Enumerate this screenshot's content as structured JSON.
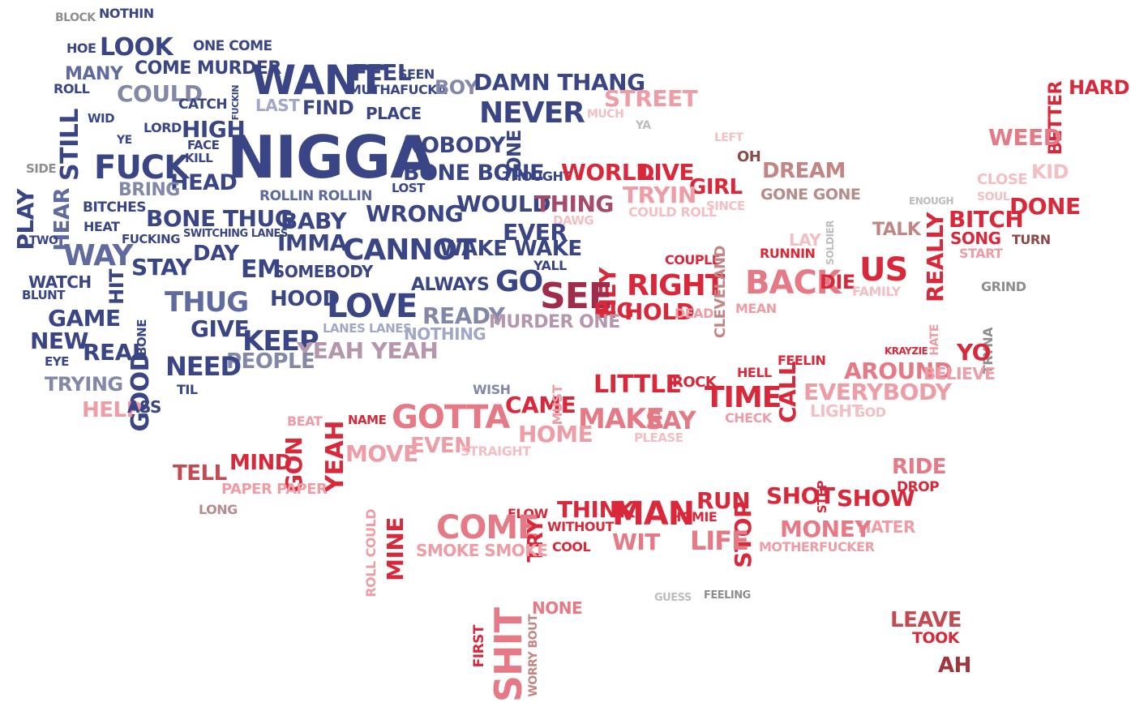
{
  "palette": {
    "navy": "#3a4585",
    "mid_navy": "#5f6a9e",
    "slate": "#8388a8",
    "lavender": "#a3a7c7",
    "mauve": "#b497ad",
    "plum": "#a64a6c",
    "wine": "#9e2c4a",
    "crimson": "#d9283a",
    "red": "#e24452",
    "rose": "#e57a86",
    "pink": "#ee9ca5",
    "blush": "#f3bfc4",
    "brick": "#c44a52",
    "dusty": "#c38484",
    "taupe": "#b78b8b",
    "gray": "#8e8e8e",
    "light_gray": "#bdbdbd",
    "dark_red": "#a3343c",
    "brown": "#8a4a48"
  },
  "words": [
    {
      "text": "BLOCK",
      "color": "#8e8e8e"
    },
    {
      "text": "NOTHIN",
      "color": "#3a4585"
    },
    {
      "text": "HOE",
      "color": "#3a4585"
    },
    {
      "text": "LOOK",
      "color": "#3a4585"
    },
    {
      "text": "ONE COME",
      "color": "#3a4585"
    },
    {
      "text": "MANY",
      "color": "#5f6a9e"
    },
    {
      "text": "COME MURDER",
      "color": "#3a4585"
    },
    {
      "text": "WANT",
      "color": "#3a4585"
    },
    {
      "text": "FEEL",
      "color": "#3a4585"
    },
    {
      "text": "SEEN",
      "color": "#3a4585"
    },
    {
      "text": "ROLL",
      "color": "#3a4585"
    },
    {
      "text": "COULD",
      "color": "#8388a8"
    },
    {
      "text": "FUCKIN",
      "color": "#3a4585"
    },
    {
      "text": "MUTHAFUCKA",
      "color": "#3a4585"
    },
    {
      "text": "BOY",
      "color": "#8388a8"
    },
    {
      "text": "DAMN THANG",
      "color": "#3a4585"
    },
    {
      "text": "HARD",
      "color": "#d9283a"
    },
    {
      "text": "LAST",
      "color": "#a3a7c7"
    },
    {
      "text": "FIND",
      "color": "#3a4585"
    },
    {
      "text": "STREET",
      "color": "#ee9ca5"
    },
    {
      "text": "CATCH",
      "color": "#3a4585"
    },
    {
      "text": "PLACE",
      "color": "#3a4585"
    },
    {
      "text": "NEVER",
      "color": "#3a4585"
    },
    {
      "text": "MUCH",
      "color": "#f3bfc4"
    },
    {
      "text": "BETTER",
      "color": "#d9283a"
    },
    {
      "text": "STILL",
      "color": "#3a4585"
    },
    {
      "text": "WID",
      "color": "#3a4585"
    },
    {
      "text": "LORD",
      "color": "#3a4585"
    },
    {
      "text": "HIGH",
      "color": "#3a4585"
    },
    {
      "text": "YA",
      "color": "#bdbdbd"
    },
    {
      "text": "YE",
      "color": "#3a4585"
    },
    {
      "text": "FACE",
      "color": "#3a4585"
    },
    {
      "text": "NIGGA",
      "color": "#3a4585"
    },
    {
      "text": "NOBODY",
      "color": "#3a4585"
    },
    {
      "text": "ONE",
      "color": "#3a4585"
    },
    {
      "text": "LEFT",
      "color": "#f3bfc4"
    },
    {
      "text": "WEED",
      "color": "#e57a86"
    },
    {
      "text": "KILL",
      "color": "#3a4585"
    },
    {
      "text": "OH",
      "color": "#8a4a48"
    },
    {
      "text": "FUCK",
      "color": "#3a4585"
    },
    {
      "text": "SIDE",
      "color": "#8e8e8e"
    },
    {
      "text": "HEAD",
      "color": "#3a4585"
    },
    {
      "text": "BONE BONE",
      "color": "#3a4585"
    },
    {
      "text": "THOUGHT",
      "color": "#3a4585"
    },
    {
      "text": "WORLD",
      "color": "#d9283a"
    },
    {
      "text": "LIVE",
      "color": "#d9283a"
    },
    {
      "text": "DREAM",
      "color": "#c38484"
    },
    {
      "text": "CLOSE",
      "color": "#f3bfc4"
    },
    {
      "text": "KID",
      "color": "#f3bfc4"
    },
    {
      "text": "BRING",
      "color": "#8388a8"
    },
    {
      "text": "LOST",
      "color": "#3a4585"
    },
    {
      "text": "GIRL",
      "color": "#d9283a"
    },
    {
      "text": "ROLLIN ROLLIN",
      "color": "#5f6a9e"
    },
    {
      "text": "TRYIN",
      "color": "#ee9ca5"
    },
    {
      "text": "GONE GONE",
      "color": "#b78b8b"
    },
    {
      "text": "SOUL",
      "color": "#f3bfc4"
    },
    {
      "text": "PLAY",
      "color": "#3a4585"
    },
    {
      "text": "HEAR",
      "color": "#5f6a9e"
    },
    {
      "text": "WOULD",
      "color": "#3a4585"
    },
    {
      "text": "THING",
      "color": "#a64a6c"
    },
    {
      "text": "ENOUGH",
      "color": "#bdbdbd"
    },
    {
      "text": "DONE",
      "color": "#d9283a"
    },
    {
      "text": "BITCHES",
      "color": "#3a4585"
    },
    {
      "text": "WRONG",
      "color": "#3a4585"
    },
    {
      "text": "SINCE",
      "color": "#f3bfc4"
    },
    {
      "text": "COULD ROLL",
      "color": "#f3bfc4"
    },
    {
      "text": "BONE THUG",
      "color": "#3a4585"
    },
    {
      "text": "BABY",
      "color": "#3a4585"
    },
    {
      "text": "HEAT",
      "color": "#3a4585"
    },
    {
      "text": "DAWG",
      "color": "#f3bfc4"
    },
    {
      "text": "BITCH",
      "color": "#d9283a"
    },
    {
      "text": "TALK",
      "color": "#c38484"
    },
    {
      "text": "TWO",
      "color": "#3a4585"
    },
    {
      "text": "FUCKING",
      "color": "#3a4585"
    },
    {
      "text": "SWITCHING LANES",
      "color": "#3a4585"
    },
    {
      "text": "IMMA",
      "color": "#3a4585"
    },
    {
      "text": "EVER",
      "color": "#3a4585"
    },
    {
      "text": "LAY",
      "color": "#f3bfc4"
    },
    {
      "text": "SOLDIER",
      "color": "#bdbdbd"
    },
    {
      "text": "SONG",
      "color": "#d9283a"
    },
    {
      "text": "TURN",
      "color": "#8a4a48"
    },
    {
      "text": "WAY",
      "color": "#5f6a9e"
    },
    {
      "text": "DAY",
      "color": "#3a4585"
    },
    {
      "text": "CANNOT",
      "color": "#3a4585"
    },
    {
      "text": "WAKE WAKE",
      "color": "#3a4585"
    },
    {
      "text": "REALLY",
      "color": "#d9283a"
    },
    {
      "text": "START",
      "color": "#ee9ca5"
    },
    {
      "text": "STAY",
      "color": "#3a4585"
    },
    {
      "text": "RUNNIN",
      "color": "#d9283a"
    },
    {
      "text": "COUPLE",
      "color": "#d9283a"
    },
    {
      "text": "US",
      "color": "#d9283a"
    },
    {
      "text": "EM",
      "color": "#3a4585"
    },
    {
      "text": "SOMEBODY",
      "color": "#3a4585"
    },
    {
      "text": "YALL",
      "color": "#3a4585"
    },
    {
      "text": "WATCH",
      "color": "#3a4585"
    },
    {
      "text": "HIT",
      "color": "#3a4585"
    },
    {
      "text": "GO",
      "color": "#3a4585"
    },
    {
      "text": "ALWAYS",
      "color": "#3a4585"
    },
    {
      "text": "HEY",
      "color": "#d9283a"
    },
    {
      "text": "RIGHT",
      "color": "#d9283a"
    },
    {
      "text": "CLEVELAND",
      "color": "#c38484"
    },
    {
      "text": "BACK",
      "color": "#e57a86"
    },
    {
      "text": "DIE",
      "color": "#d9283a"
    },
    {
      "text": "FAMILY",
      "color": "#f3bfc4"
    },
    {
      "text": "GRIND",
      "color": "#8e8e8e"
    },
    {
      "text": "BLUNT",
      "color": "#3a4585"
    },
    {
      "text": "THUG",
      "color": "#5f6a9e"
    },
    {
      "text": "HOOD",
      "color": "#3a4585"
    },
    {
      "text": "LOVE",
      "color": "#3a4585"
    },
    {
      "text": "SEE",
      "color": "#9e2c4a"
    },
    {
      "text": "MEAN",
      "color": "#ee9ca5"
    },
    {
      "text": "BIG",
      "color": "#d9283a"
    },
    {
      "text": "HOLD",
      "color": "#d9283a"
    },
    {
      "text": "DEAD",
      "color": "#ee9ca5"
    },
    {
      "text": "GAME",
      "color": "#3a4585"
    },
    {
      "text": "READY",
      "color": "#8388a8"
    },
    {
      "text": "MURDER ONE",
      "color": "#b497ad"
    },
    {
      "text": "GIVE",
      "color": "#3a4585"
    },
    {
      "text": "BONE",
      "color": "#3a4585"
    },
    {
      "text": "LANES LANES",
      "color": "#a3a7c7"
    },
    {
      "text": "NOTHING",
      "color": "#a3a7c7"
    },
    {
      "text": "NEW",
      "color": "#3a4585"
    },
    {
      "text": "KEEP",
      "color": "#3a4585"
    },
    {
      "text": "HATE",
      "color": "#ee9ca5"
    },
    {
      "text": "KRAYZIE",
      "color": "#d9283a"
    },
    {
      "text": "TRYNA",
      "color": "#8e8e8e"
    },
    {
      "text": "REAL",
      "color": "#3a4585"
    },
    {
      "text": "EYE",
      "color": "#3a4585"
    },
    {
      "text": "YEAH YEAH",
      "color": "#b497ad"
    },
    {
      "text": "PEOPLE",
      "color": "#8388a8"
    },
    {
      "text": "YO",
      "color": "#d9283a"
    },
    {
      "text": "FEELIN",
      "color": "#d9283a"
    },
    {
      "text": "AROUND",
      "color": "#e57a86"
    },
    {
      "text": "BELIEVE",
      "color": "#ee9ca5"
    },
    {
      "text": "GOOD",
      "color": "#3a4585"
    },
    {
      "text": "NEED",
      "color": "#3a4585"
    },
    {
      "text": "TRYING",
      "color": "#8388a8"
    },
    {
      "text": "HELL",
      "color": "#d9283a"
    },
    {
      "text": "LITTLE",
      "color": "#d9283a"
    },
    {
      "text": "ROCK",
      "color": "#d9283a"
    },
    {
      "text": "TIME",
      "color": "#d9283a"
    },
    {
      "text": "CALL",
      "color": "#d9283a"
    },
    {
      "text": "EVERYBODY",
      "color": "#ee9ca5"
    },
    {
      "text": "TIL",
      "color": "#3a4585"
    },
    {
      "text": "HELP",
      "color": "#ee9ca5"
    },
    {
      "text": "ASS",
      "color": "#3a4585"
    },
    {
      "text": "WISH",
      "color": "#8388a8"
    },
    {
      "text": "CAME",
      "color": "#d9283a"
    },
    {
      "text": "MUST",
      "color": "#ee9ca5"
    },
    {
      "text": "GOTTA",
      "color": "#e57a86"
    },
    {
      "text": "MAKE",
      "color": "#e57a86"
    },
    {
      "text": "SAY",
      "color": "#e57a86"
    },
    {
      "text": "CHECK",
      "color": "#ee9ca5"
    },
    {
      "text": "LIGHT",
      "color": "#f3bfc4"
    },
    {
      "text": "GOD",
      "color": "#f3bfc4"
    },
    {
      "text": "BEAT",
      "color": "#ee9ca5"
    },
    {
      "text": "NAME",
      "color": "#d9283a"
    },
    {
      "text": "YEAH",
      "color": "#d9283a"
    },
    {
      "text": "HOME",
      "color": "#ee9ca5"
    },
    {
      "text": "PLEASE",
      "color": "#f3bfc4"
    },
    {
      "text": "GON",
      "color": "#d9283a"
    },
    {
      "text": "MOVE",
      "color": "#ee9ca5"
    },
    {
      "text": "EVEN",
      "color": "#ee9ca5"
    },
    {
      "text": "STRAIGHT",
      "color": "#f3bfc4"
    },
    {
      "text": "MIND",
      "color": "#d9283a"
    },
    {
      "text": "TELL",
      "color": "#c44a52"
    },
    {
      "text": "RIDE",
      "color": "#e57a86"
    },
    {
      "text": "PAPER PAPER",
      "color": "#ee9ca5"
    },
    {
      "text": "DROP",
      "color": "#d9283a"
    },
    {
      "text": "SHOT",
      "color": "#d9283a"
    },
    {
      "text": "STEP",
      "color": "#d9283a"
    },
    {
      "text": "SHOW",
      "color": "#d9283a"
    },
    {
      "text": "RUN",
      "color": "#d9283a"
    },
    {
      "text": "THINK",
      "color": "#d9283a"
    },
    {
      "text": "MAN",
      "color": "#d9283a"
    },
    {
      "text": "LONG",
      "color": "#b78b8b"
    },
    {
      "text": "FLOW",
      "color": "#d9283a"
    },
    {
      "text": "HOMIE",
      "color": "#d9283a"
    },
    {
      "text": "STOP",
      "color": "#d9283a"
    },
    {
      "text": "HATER",
      "color": "#ee9ca5"
    },
    {
      "text": "ROLL COULD",
      "color": "#ee9ca5"
    },
    {
      "text": "MINE",
      "color": "#d9283a"
    },
    {
      "text": "COME",
      "color": "#e57a86"
    },
    {
      "text": "WITHOUT",
      "color": "#d9283a"
    },
    {
      "text": "MONEY",
      "color": "#e57a86"
    },
    {
      "text": "WIT",
      "color": "#e57a86"
    },
    {
      "text": "LIFE",
      "color": "#e57a86"
    },
    {
      "text": "TRY",
      "color": "#d9283a"
    },
    {
      "text": "COOL",
      "color": "#d9283a"
    },
    {
      "text": "SMOKE SMOKE",
      "color": "#ee9ca5"
    },
    {
      "text": "MOTHERFUCKER",
      "color": "#ee9ca5"
    },
    {
      "text": "GUESS",
      "color": "#bdbdbd"
    },
    {
      "text": "FEELING",
      "color": "#8e8e8e"
    },
    {
      "text": "NONE",
      "color": "#e57a86"
    },
    {
      "text": "LEAVE",
      "color": "#c44a52"
    },
    {
      "text": "TOOK",
      "color": "#d9283a"
    },
    {
      "text": "FIRST",
      "color": "#d9283a"
    },
    {
      "text": "SHIT",
      "color": "#e57a86"
    },
    {
      "text": "WORRY BOUT",
      "color": "#c38484"
    },
    {
      "text": "AH",
      "color": "#a3343c"
    }
  ]
}
